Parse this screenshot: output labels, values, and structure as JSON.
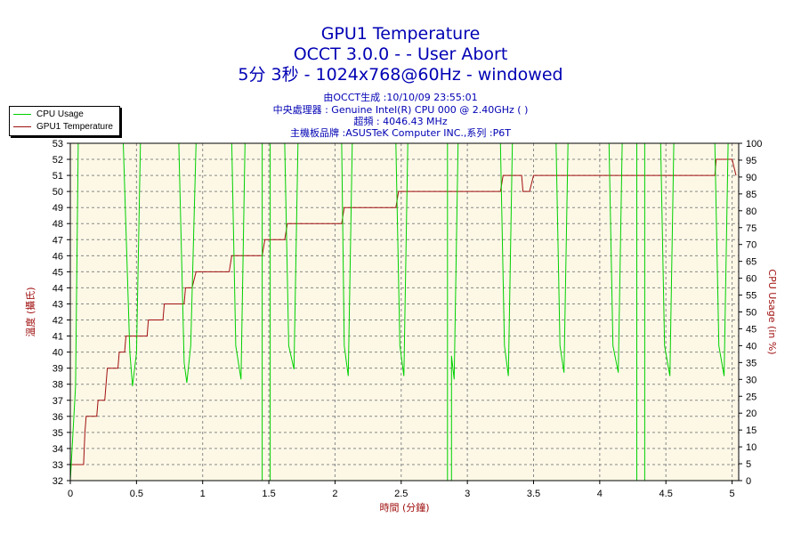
{
  "titles": {
    "line1": "GPU1 Temperature",
    "line2": "OCCT 3.0.0 -  - User Abort",
    "line3": "5分 3秒 - 1024x768@60Hz - windowed"
  },
  "info": {
    "line1": "由OCCT生成 :10/10/09 23:55:01",
    "line2": "中央處理器 : Genuine Intel(R) CPU 000 @ 2.40GHz (  )",
    "line3": "超頻 : 4046.43 MHz",
    "line4": "主機板品牌 :ASUSTeK Computer INC.,系列 :P6T"
  },
  "legend": {
    "cpu_label": "CPU Usage",
    "gpu_label": "GPU1 Temperature"
  },
  "colors": {
    "cpu_usage": "#00d000",
    "gpu_temp": "#a01010",
    "axis_left": "#a01010",
    "axis_right": "#a01010",
    "title": "#0000b4",
    "plot_bg": "#fdf8e6"
  },
  "chart_data": {
    "type": "line",
    "xlabel": "時間 (分鐘)",
    "ylabel_left": "溫度 (攝氏)",
    "ylabel_right": "CPU Usage (in %)",
    "xlim": [
      0,
      5.05
    ],
    "xticks": [
      0,
      0.5,
      1,
      1.5,
      2,
      2.5,
      3,
      3.5,
      4,
      4.5,
      5
    ],
    "xtick_labels": [
      "0",
      "0.5",
      "1",
      "1.5",
      "2",
      "2.5",
      "3",
      "3.5",
      "4",
      "4.5",
      "5"
    ],
    "ylim_left": [
      32,
      53
    ],
    "yticks_left": [
      32,
      33,
      34,
      35,
      36,
      37,
      38,
      39,
      40,
      41,
      42,
      43,
      44,
      45,
      46,
      47,
      48,
      49,
      50,
      51,
      52,
      53
    ],
    "ylim_right": [
      0,
      100
    ],
    "yticks_right": [
      0,
      5,
      10,
      15,
      20,
      25,
      30,
      35,
      40,
      45,
      50,
      55,
      60,
      65,
      70,
      75,
      80,
      85,
      90,
      95,
      100
    ],
    "grid": true,
    "legend_position": "top-left",
    "series": [
      {
        "name": "GPU1 Temperature",
        "axis": "left",
        "points": [
          [
            0.0,
            33
          ],
          [
            0.1,
            33
          ],
          [
            0.11,
            35
          ],
          [
            0.12,
            36
          ],
          [
            0.2,
            36
          ],
          [
            0.21,
            37
          ],
          [
            0.26,
            37
          ],
          [
            0.28,
            39
          ],
          [
            0.36,
            39
          ],
          [
            0.37,
            40
          ],
          [
            0.41,
            40
          ],
          [
            0.42,
            41
          ],
          [
            0.58,
            41
          ],
          [
            0.59,
            42
          ],
          [
            0.7,
            42
          ],
          [
            0.71,
            43
          ],
          [
            0.86,
            43
          ],
          [
            0.87,
            44
          ],
          [
            0.92,
            44
          ],
          [
            0.95,
            45
          ],
          [
            1.2,
            45
          ],
          [
            1.22,
            46
          ],
          [
            1.45,
            46
          ],
          [
            1.47,
            47
          ],
          [
            1.62,
            47
          ],
          [
            1.64,
            48
          ],
          [
            2.05,
            48
          ],
          [
            2.07,
            49
          ],
          [
            2.46,
            49
          ],
          [
            2.48,
            50
          ],
          [
            3.25,
            50
          ],
          [
            3.27,
            51
          ],
          [
            3.41,
            51
          ],
          [
            3.42,
            50
          ],
          [
            3.47,
            50
          ],
          [
            3.5,
            51
          ],
          [
            4.87,
            51
          ],
          [
            4.88,
            52
          ],
          [
            5.0,
            52
          ],
          [
            5.03,
            51
          ]
        ]
      },
      {
        "name": "CPU Usage",
        "axis": "right",
        "points": [
          [
            0.0,
            0
          ],
          [
            0.04,
            28
          ],
          [
            0.06,
            100
          ],
          [
            0.09,
            100
          ],
          [
            0.4,
            100
          ],
          [
            0.45,
            38
          ],
          [
            0.47,
            28
          ],
          [
            0.5,
            38
          ],
          [
            0.53,
            100
          ],
          [
            0.82,
            100
          ],
          [
            0.86,
            35
          ],
          [
            0.88,
            29
          ],
          [
            0.91,
            40
          ],
          [
            0.95,
            100
          ],
          [
            1.22,
            100
          ],
          [
            1.25,
            40
          ],
          [
            1.29,
            30
          ],
          [
            1.32,
            100
          ],
          [
            1.45,
            100
          ],
          [
            1.45,
            0
          ],
          [
            1.51,
            0
          ],
          [
            1.51,
            100
          ],
          [
            1.62,
            100
          ],
          [
            1.65,
            40
          ],
          [
            1.69,
            33
          ],
          [
            1.72,
            100
          ],
          [
            2.05,
            100
          ],
          [
            2.07,
            40
          ],
          [
            2.1,
            31
          ],
          [
            2.13,
            100
          ],
          [
            2.46,
            100
          ],
          [
            2.49,
            40
          ],
          [
            2.52,
            31
          ],
          [
            2.55,
            100
          ],
          [
            2.85,
            100
          ],
          [
            2.85,
            0
          ],
          [
            2.88,
            0
          ],
          [
            2.88,
            37
          ],
          [
            2.9,
            30
          ],
          [
            2.93,
            100
          ],
          [
            3.25,
            100
          ],
          [
            3.28,
            40
          ],
          [
            3.31,
            31
          ],
          [
            3.34,
            100
          ],
          [
            3.67,
            100
          ],
          [
            3.7,
            40
          ],
          [
            3.73,
            32
          ],
          [
            3.76,
            100
          ],
          [
            4.07,
            100
          ],
          [
            4.1,
            40
          ],
          [
            4.14,
            32
          ],
          [
            4.17,
            100
          ],
          [
            4.28,
            100
          ],
          [
            4.28,
            0
          ],
          [
            4.34,
            0
          ],
          [
            4.34,
            100
          ],
          [
            4.46,
            100
          ],
          [
            4.49,
            40
          ],
          [
            4.53,
            31
          ],
          [
            4.56,
            100
          ],
          [
            4.87,
            100
          ],
          [
            4.9,
            40
          ],
          [
            4.94,
            31
          ],
          [
            4.97,
            100
          ],
          [
            5.05,
            100
          ]
        ]
      }
    ]
  }
}
